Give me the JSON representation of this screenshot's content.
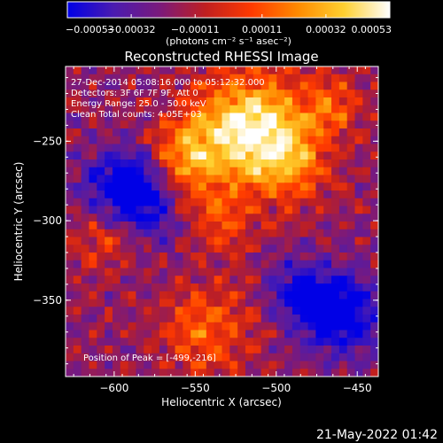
{
  "chart_data": {
    "type": "heatmap",
    "title": "Reconstructed RHESSI Image",
    "xlabel": "Heliocentric X (arcsec)",
    "ylabel": "Heliocentric Y (arcsec)",
    "x_range": [
      -630,
      -437
    ],
    "y_range": [
      -398,
      -203
    ],
    "x_ticks": [
      {
        "value": -600,
        "label": "−600"
      },
      {
        "value": -550,
        "label": "−550"
      },
      {
        "value": -500,
        "label": "−500"
      },
      {
        "value": -450,
        "label": "−450"
      }
    ],
    "y_ticks": [
      {
        "value": -250,
        "label": "−250"
      },
      {
        "value": -300,
        "label": "−300"
      },
      {
        "value": -350,
        "label": "−350"
      }
    ],
    "colorbar": {
      "min": -0.00053,
      "max": 0.00053,
      "colormap": "blue-purple-red-orange-yellow-white",
      "stops": [
        "#0000e6",
        "#4a1bb0",
        "#7a1a7c",
        "#c01f20",
        "#ff3a00",
        "#ff8a00",
        "#ffd030",
        "#ffffff"
      ],
      "tick_labels": [
        "−0.00053",
        "−0.00032",
        "−0.00011",
        "0.00011",
        "0.00032",
        "0.00053"
      ],
      "tick_values": [
        -0.00053,
        -0.00032,
        -0.00011,
        0.00011,
        0.00032,
        0.00053
      ],
      "unit_label": "(photons cm⁻² s⁻¹ asec⁻²)"
    },
    "annotations": [
      "27-Dec-2014 05:08:16.000 to 05:12:32.000",
      "Detectors: 3F 6F 7F 9F, Att 0",
      "Energy Range: 25.0 - 50.0 keV",
      "Clean    Total counts: 4.05E+03"
    ],
    "peak_label": "Position of Peak = [-499,-216]",
    "peak_position": [
      -499,
      -216
    ],
    "grid": false,
    "timestamp": "21-May-2022 01:42"
  }
}
